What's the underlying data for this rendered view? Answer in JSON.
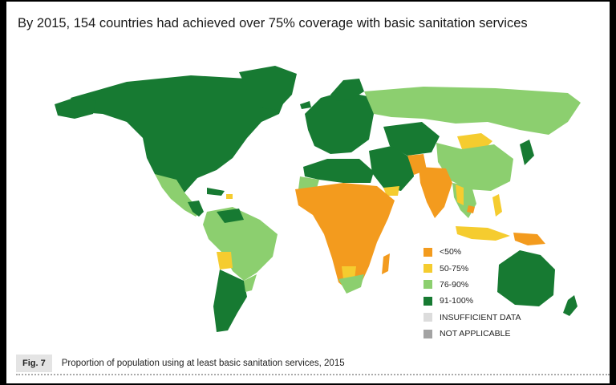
{
  "title": "By 2015, 154 countries had achieved over 75% coverage with basic sanitation services",
  "legend": [
    {
      "label": "<50%",
      "color": "#f39b1e"
    },
    {
      "label": "50-75%",
      "color": "#f5cc2f"
    },
    {
      "label": "76-90%",
      "color": "#8ccf6f"
    },
    {
      "label": "91-100%",
      "color": "#177a32"
    },
    {
      "label": "INSUFFICIENT DATA",
      "color": "#dcdcdc"
    },
    {
      "label": "NOT APPLICABLE",
      "color": "#a3a3a3"
    }
  ],
  "figure": {
    "number": "Fig. 7",
    "caption": "Proportion of population using at least basic sanitation services, 2015"
  }
}
